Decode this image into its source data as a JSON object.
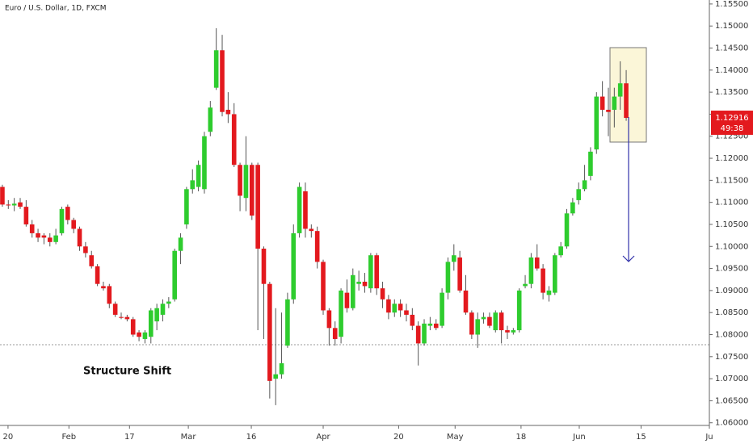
{
  "chart_data": {
    "type": "candlestick",
    "title": "Euro / U.S. Dollar, 1D, FXCM",
    "annotation": "Structure Shift",
    "last_price": 1.12916,
    "countdown": "49:38",
    "up_color": "#2ecc2e",
    "down_color": "#e3191e",
    "open": [
      1.1135,
      1.1095,
      1.1093,
      1.11,
      1.109,
      1.105,
      1.103,
      1.1025,
      1.102,
      1.101,
      1.103,
      1.109,
      1.106,
      1.104,
      1.1,
      1.098,
      1.0955,
      1.091,
      1.091,
      1.087,
      1.084,
      1.084,
      1.0835,
      1.0805,
      1.079,
      1.0795,
      1.083,
      1.0845,
      1.087,
      1.088,
      1.099,
      1.105,
      1.113,
      1.1135,
      1.113,
      1.126,
      1.136,
      1.1445,
      1.131,
      1.13,
      1.1185,
      1.111,
      1.1185,
      1.1185,
      1.0995,
      1.0915,
      1.07,
      1.071,
      1.0775,
      1.088,
      1.103,
      1.1125,
      1.104,
      1.1035,
      1.0965,
      1.0855,
      1.0815,
      1.0795,
      1.0895,
      1.086,
      1.0915,
      1.092,
      1.0905,
      1.098,
      1.0905,
      1.088,
      1.085,
      1.087,
      1.0855,
      1.0845,
      1.082,
      1.078,
      1.082,
      1.0825,
      1.082,
      1.0895,
      1.0965,
      1.0975,
      1.09,
      1.085,
      1.08,
      1.0835,
      1.084,
      1.081,
      1.085,
      1.081,
      1.0805,
      1.081,
      1.091,
      1.0915,
      1.0975,
      1.095,
      1.089,
      1.0895,
      1.098,
      1.1,
      1.1075,
      1.1105,
      1.113,
      1.116,
      1.122,
      1.134,
      1.131,
      1.131,
      1.134,
      1.137
    ],
    "high": [
      1.114,
      1.1105,
      1.111,
      1.111,
      1.1105,
      1.106,
      1.104,
      1.103,
      1.103,
      1.104,
      1.109,
      1.1095,
      1.1065,
      1.1045,
      1.101,
      1.099,
      1.096,
      1.092,
      1.0915,
      1.0875,
      1.085,
      1.0845,
      1.084,
      1.081,
      1.081,
      1.086,
      1.087,
      1.088,
      1.0885,
      1.0995,
      1.103,
      1.1135,
      1.1175,
      1.1195,
      1.126,
      1.133,
      1.1495,
      1.148,
      1.135,
      1.1325,
      1.119,
      1.125,
      1.119,
      1.119,
      1.1,
      1.092,
      1.086,
      1.085,
      1.0895,
      1.105,
      1.1145,
      1.1145,
      1.105,
      1.1045,
      1.097,
      1.086,
      1.083,
      1.0905,
      1.0925,
      1.095,
      1.0945,
      1.094,
      1.0985,
      1.0985,
      1.092,
      1.089,
      1.088,
      1.088,
      1.087,
      1.086,
      1.083,
      1.0835,
      1.084,
      1.0835,
      1.0905,
      1.0975,
      1.1005,
      1.099,
      1.0935,
      1.0855,
      1.085,
      1.085,
      1.085,
      1.0855,
      1.0855,
      1.082,
      1.0815,
      1.0905,
      1.0935,
      1.0985,
      1.1005,
      1.096,
      1.091,
      1.0985,
      1.101,
      1.1085,
      1.111,
      1.1145,
      1.1185,
      1.1225,
      1.135,
      1.1375,
      1.136,
      1.136,
      1.142,
      1.14
    ],
    "low": [
      1.109,
      1.1085,
      1.108,
      1.1085,
      1.1045,
      1.102,
      1.101,
      1.1005,
      1.1,
      1.1005,
      1.1025,
      1.105,
      1.103,
      1.099,
      1.0975,
      1.095,
      1.091,
      1.09,
      1.086,
      1.084,
      1.0835,
      1.083,
      1.0795,
      1.0785,
      1.078,
      1.078,
      1.081,
      1.083,
      1.086,
      1.0875,
      1.096,
      1.104,
      1.112,
      1.1125,
      1.112,
      1.125,
      1.1355,
      1.1295,
      1.128,
      1.118,
      1.108,
      1.108,
      1.106,
      1.081,
      1.079,
      1.0655,
      1.064,
      1.07,
      1.077,
      1.087,
      1.102,
      1.102,
      1.102,
      1.095,
      1.0845,
      1.0775,
      1.0775,
      1.078,
      1.085,
      1.0855,
      1.09,
      1.0895,
      1.0895,
      1.089,
      1.086,
      1.0835,
      1.084,
      1.084,
      1.083,
      1.081,
      1.073,
      1.0775,
      1.081,
      1.081,
      1.0815,
      1.088,
      1.0945,
      1.0895,
      1.0845,
      1.079,
      1.077,
      1.0825,
      1.0815,
      1.0805,
      1.078,
      1.079,
      1.08,
      1.0805,
      1.0905,
      1.0905,
      1.0945,
      1.088,
      1.0875,
      1.089,
      1.0975,
      1.0995,
      1.107,
      1.1095,
      1.1125,
      1.115,
      1.121,
      1.1295,
      1.125,
      1.127,
      1.131,
      1.1285
    ],
    "close": [
      1.1095,
      1.1093,
      1.1097,
      1.109,
      1.105,
      1.103,
      1.102,
      1.102,
      1.101,
      1.1025,
      1.1085,
      1.106,
      1.104,
      1.1,
      1.0985,
      1.0955,
      1.0915,
      1.0905,
      1.087,
      1.0845,
      1.0838,
      1.0835,
      1.08,
      1.0795,
      1.0805,
      1.0855,
      1.086,
      1.087,
      1.0875,
      1.099,
      1.102,
      1.113,
      1.115,
      1.1185,
      1.125,
      1.1315,
      1.1445,
      1.1305,
      1.13,
      1.1185,
      1.1115,
      1.1185,
      1.107,
      1.0995,
      1.0915,
      1.0695,
      1.071,
      1.0735,
      1.088,
      1.103,
      1.1135,
      1.104,
      1.1035,
      1.0965,
      1.0855,
      1.0815,
      1.079,
      1.09,
      1.086,
      1.0935,
      1.092,
      1.091,
      1.098,
      1.0905,
      1.088,
      1.085,
      1.087,
      1.0855,
      1.0845,
      1.082,
      1.078,
      1.0825,
      1.0825,
      1.0815,
      1.0895,
      1.0965,
      1.098,
      1.09,
      1.085,
      1.08,
      1.0835,
      1.084,
      1.082,
      1.085,
      1.081,
      1.0805,
      1.081,
      1.09,
      1.0915,
      1.0975,
      1.095,
      1.0895,
      1.09,
      1.098,
      1.1,
      1.1075,
      1.11,
      1.113,
      1.115,
      1.1215,
      1.134,
      1.131,
      1.1305,
      1.134,
      1.137,
      1.12916
    ],
    "xlim": [
      -0.4,
      119
    ],
    "xticks": [
      {
        "value": 0.95,
        "label": "20"
      },
      {
        "value": 11.2,
        "label": "Feb"
      },
      {
        "value": 21.4,
        "label": "17"
      },
      {
        "value": 31.3,
        "label": "Mar"
      },
      {
        "value": 41.9,
        "label": "16"
      },
      {
        "value": 54,
        "label": "Apr"
      },
      {
        "value": 66.7,
        "label": "20"
      },
      {
        "value": 76.2,
        "label": "May"
      },
      {
        "value": 87.3,
        "label": "18"
      },
      {
        "value": 97.1,
        "label": "Jun"
      },
      {
        "value": 107.5,
        "label": "15"
      },
      {
        "value": 119,
        "label": "Ju"
      }
    ],
    "ylim": [
      1.0594,
      1.1559
    ],
    "yticks": [
      {
        "value": 1.06,
        "label": "1.06000"
      },
      {
        "value": 1.065,
        "label": "1.06500"
      },
      {
        "value": 1.07,
        "label": "1.07000"
      },
      {
        "value": 1.075,
        "label": "1.07500"
      },
      {
        "value": 1.08,
        "label": "1.08000"
      },
      {
        "value": 1.085,
        "label": "1.08500"
      },
      {
        "value": 1.09,
        "label": "1.09000"
      },
      {
        "value": 1.095,
        "label": "1.09500"
      },
      {
        "value": 1.1,
        "label": "1.10000"
      },
      {
        "value": 1.105,
        "label": "1.10500"
      },
      {
        "value": 1.11,
        "label": "1.11000"
      },
      {
        "value": 1.115,
        "label": "1.11500"
      },
      {
        "value": 1.12,
        "label": "1.12000"
      },
      {
        "value": 1.125,
        "label": "1.12500"
      },
      {
        "value": 1.13,
        "label": "1.13000"
      },
      {
        "value": 1.135,
        "label": "1.13500"
      },
      {
        "value": 1.14,
        "label": "1.14000"
      },
      {
        "value": 1.145,
        "label": "1.14500"
      },
      {
        "value": 1.15,
        "label": "1.15000"
      },
      {
        "value": 1.155,
        "label": "1.15500"
      }
    ]
  }
}
